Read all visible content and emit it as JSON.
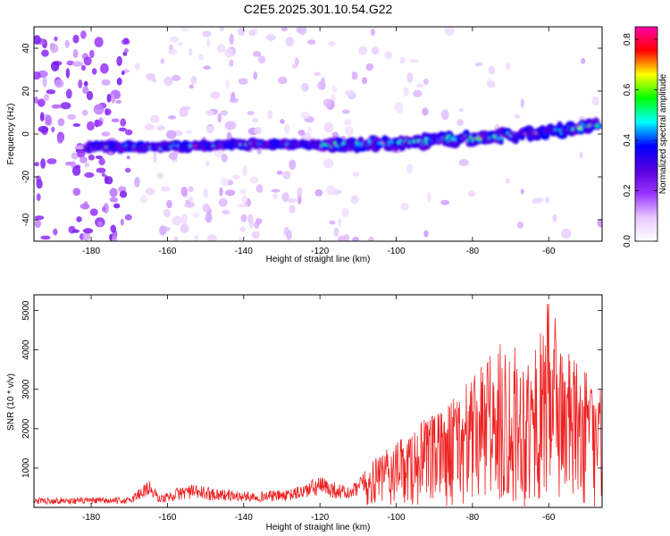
{
  "figure_title": "C2E5.2025.301.10.54.G22",
  "chart_data": [
    {
      "type": "heatmap",
      "title": "C2E5.2025.301.10.54.G22",
      "xlabel": "Height of straight line (km)",
      "ylabel": "Frequency (Hz)",
      "xlim": [
        -195,
        -46
      ],
      "ylim": [
        -50,
        50
      ],
      "xticks": [
        -180,
        -160,
        -140,
        -120,
        -100,
        -80,
        -60
      ],
      "yticks": [
        -40,
        -20,
        0,
        20,
        40
      ],
      "ridge": {
        "description_points": [
          {
            "x": -180,
            "freq": -6
          },
          {
            "x": -160,
            "freq": -6
          },
          {
            "x": -140,
            "freq": -5
          },
          {
            "x": -120,
            "freq": -5
          },
          {
            "x": -100,
            "freq": -4
          },
          {
            "x": -80,
            "freq": -2
          },
          {
            "x": -60,
            "freq": 1
          },
          {
            "x": -48,
            "freq": 4
          }
        ]
      },
      "colorbar": {
        "label": "Normalized spectral amplitude",
        "ticks": [
          0.0,
          0.2,
          0.4,
          0.6,
          0.8
        ],
        "range": [
          0,
          0.85
        ],
        "colors": [
          "#ffffff",
          "#e6c8ff",
          "#9933ff",
          "#5500dd",
          "#0000ff",
          "#00ffff",
          "#00ff00",
          "#ffff00",
          "#ff0000",
          "#ff00aa"
        ]
      }
    },
    {
      "type": "line",
      "xlabel": "Height of straight line (km)",
      "ylabel": "SNR (10 * v/v)",
      "xlim": [
        -195,
        -46
      ],
      "ylim": [
        0,
        5400
      ],
      "xticks": [
        -180,
        -160,
        -140,
        -120,
        -100,
        -80,
        -60
      ],
      "yticks": [
        1000,
        2000,
        3000,
        4000,
        5000
      ],
      "color": "#ee2222",
      "envelope_points": [
        {
          "x": -195,
          "y": 250
        },
        {
          "x": -170,
          "y": 250
        },
        {
          "x": -165,
          "y": 750
        },
        {
          "x": -162,
          "y": 300
        },
        {
          "x": -155,
          "y": 600
        },
        {
          "x": -140,
          "y": 400
        },
        {
          "x": -128,
          "y": 450
        },
        {
          "x": -120,
          "y": 800
        },
        {
          "x": -112,
          "y": 500
        },
        {
          "x": -105,
          "y": 1300
        },
        {
          "x": -95,
          "y": 2000
        },
        {
          "x": -88,
          "y": 2500
        },
        {
          "x": -80,
          "y": 3300
        },
        {
          "x": -70,
          "y": 4200
        },
        {
          "x": -64,
          "y": 3800
        },
        {
          "x": -60,
          "y": 5300
        },
        {
          "x": -55,
          "y": 4000
        },
        {
          "x": -50,
          "y": 3400
        },
        {
          "x": -46,
          "y": 2800
        }
      ]
    }
  ]
}
